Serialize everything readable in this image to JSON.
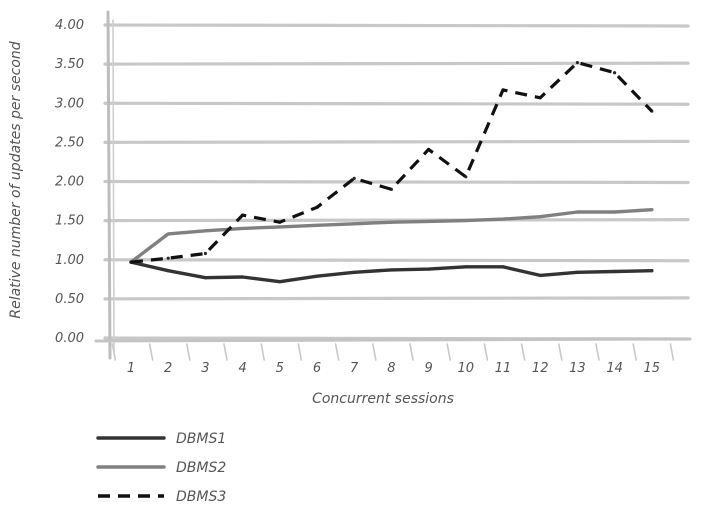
{
  "chart_data": {
    "type": "line",
    "title": "",
    "xlabel": "Concurrent sessions",
    "ylabel": "Relative number of updates per second",
    "categories": [
      "1",
      "2",
      "3",
      "4",
      "5",
      "6",
      "7",
      "8",
      "9",
      "10",
      "11",
      "12",
      "13",
      "14",
      "15"
    ],
    "y_ticks": [
      "0.00",
      "0.50",
      "1.00",
      "1.50",
      "2.00",
      "2.50",
      "3.00",
      "3.50",
      "4.00"
    ],
    "ylim": [
      0,
      4
    ],
    "grid": "horizontal",
    "legend_position": "bottom-left",
    "series": [
      {
        "name": "DBMS1",
        "style": "solid",
        "color": "#333333",
        "values": [
          0.97,
          0.86,
          0.77,
          0.78,
          0.72,
          0.79,
          0.84,
          0.87,
          0.88,
          0.91,
          0.91,
          0.8,
          0.84,
          0.85,
          0.86
        ]
      },
      {
        "name": "DBMS2",
        "style": "solid",
        "color": "#808080",
        "values": [
          0.97,
          1.33,
          1.37,
          1.4,
          1.42,
          1.44,
          1.46,
          1.48,
          1.49,
          1.5,
          1.52,
          1.55,
          1.61,
          1.61,
          1.64
        ]
      },
      {
        "name": "DBMS3",
        "style": "dashed",
        "color": "#111111",
        "values": [
          0.97,
          1.02,
          1.08,
          1.57,
          1.48,
          1.67,
          2.04,
          1.9,
          2.41,
          2.06,
          3.17,
          3.07,
          3.52,
          3.39,
          2.9
        ]
      }
    ]
  }
}
